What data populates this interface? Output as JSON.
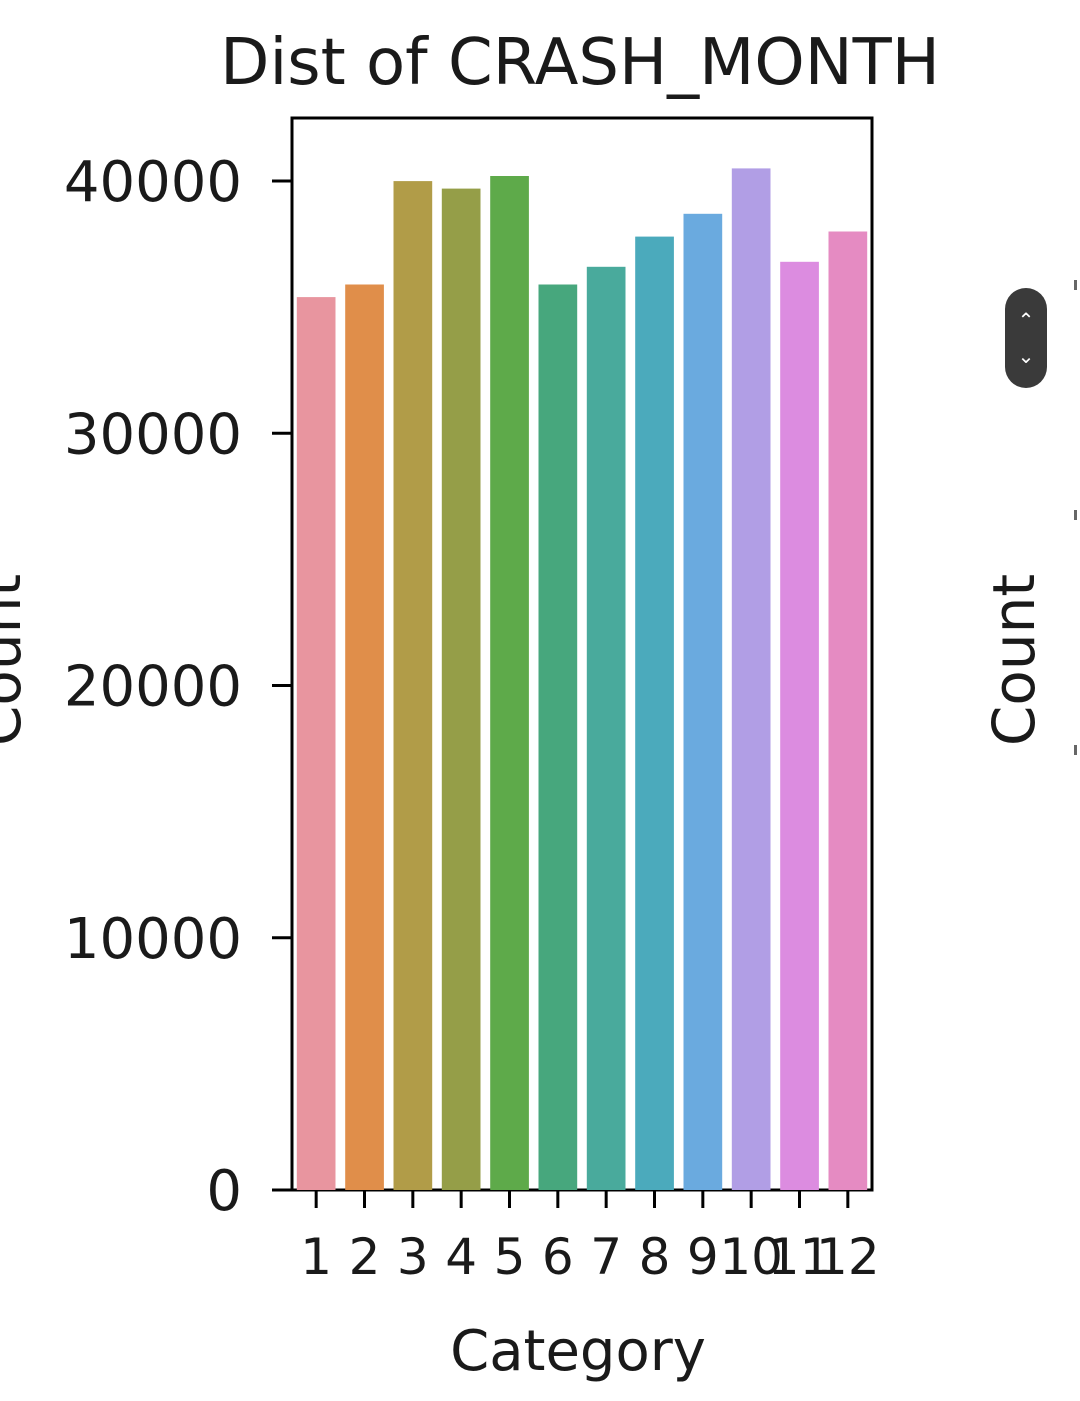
{
  "chart_data": {
    "type": "bar",
    "title": "Dist of CRASH_MONTH",
    "xlabel": "Category",
    "ylabel": "Count",
    "categories": [
      "1",
      "2",
      "3",
      "4",
      "5",
      "6",
      "7",
      "8",
      "9",
      "10",
      "11",
      "12"
    ],
    "values": [
      35400,
      35900,
      40000,
      39700,
      40200,
      35900,
      36600,
      37800,
      38700,
      40500,
      36800,
      38000
    ],
    "ylim": [
      0,
      42500
    ],
    "yticks": [
      0,
      10000,
      20000,
      30000,
      40000
    ],
    "colors": [
      "#e8959f",
      "#e08e4a",
      "#b19c48",
      "#959e48",
      "#5eaa4a",
      "#47a77d",
      "#49aa9c",
      "#4baabc",
      "#6aaadf",
      "#b19ee5",
      "#dc8ce0",
      "#e58bc2"
    ],
    "grid": false,
    "legend": "none"
  },
  "neighbor_chart": {
    "ylabel": "Count"
  },
  "scroll_control": {
    "up_icon": "chevron-up-icon",
    "down_icon": "chevron-down-icon"
  }
}
